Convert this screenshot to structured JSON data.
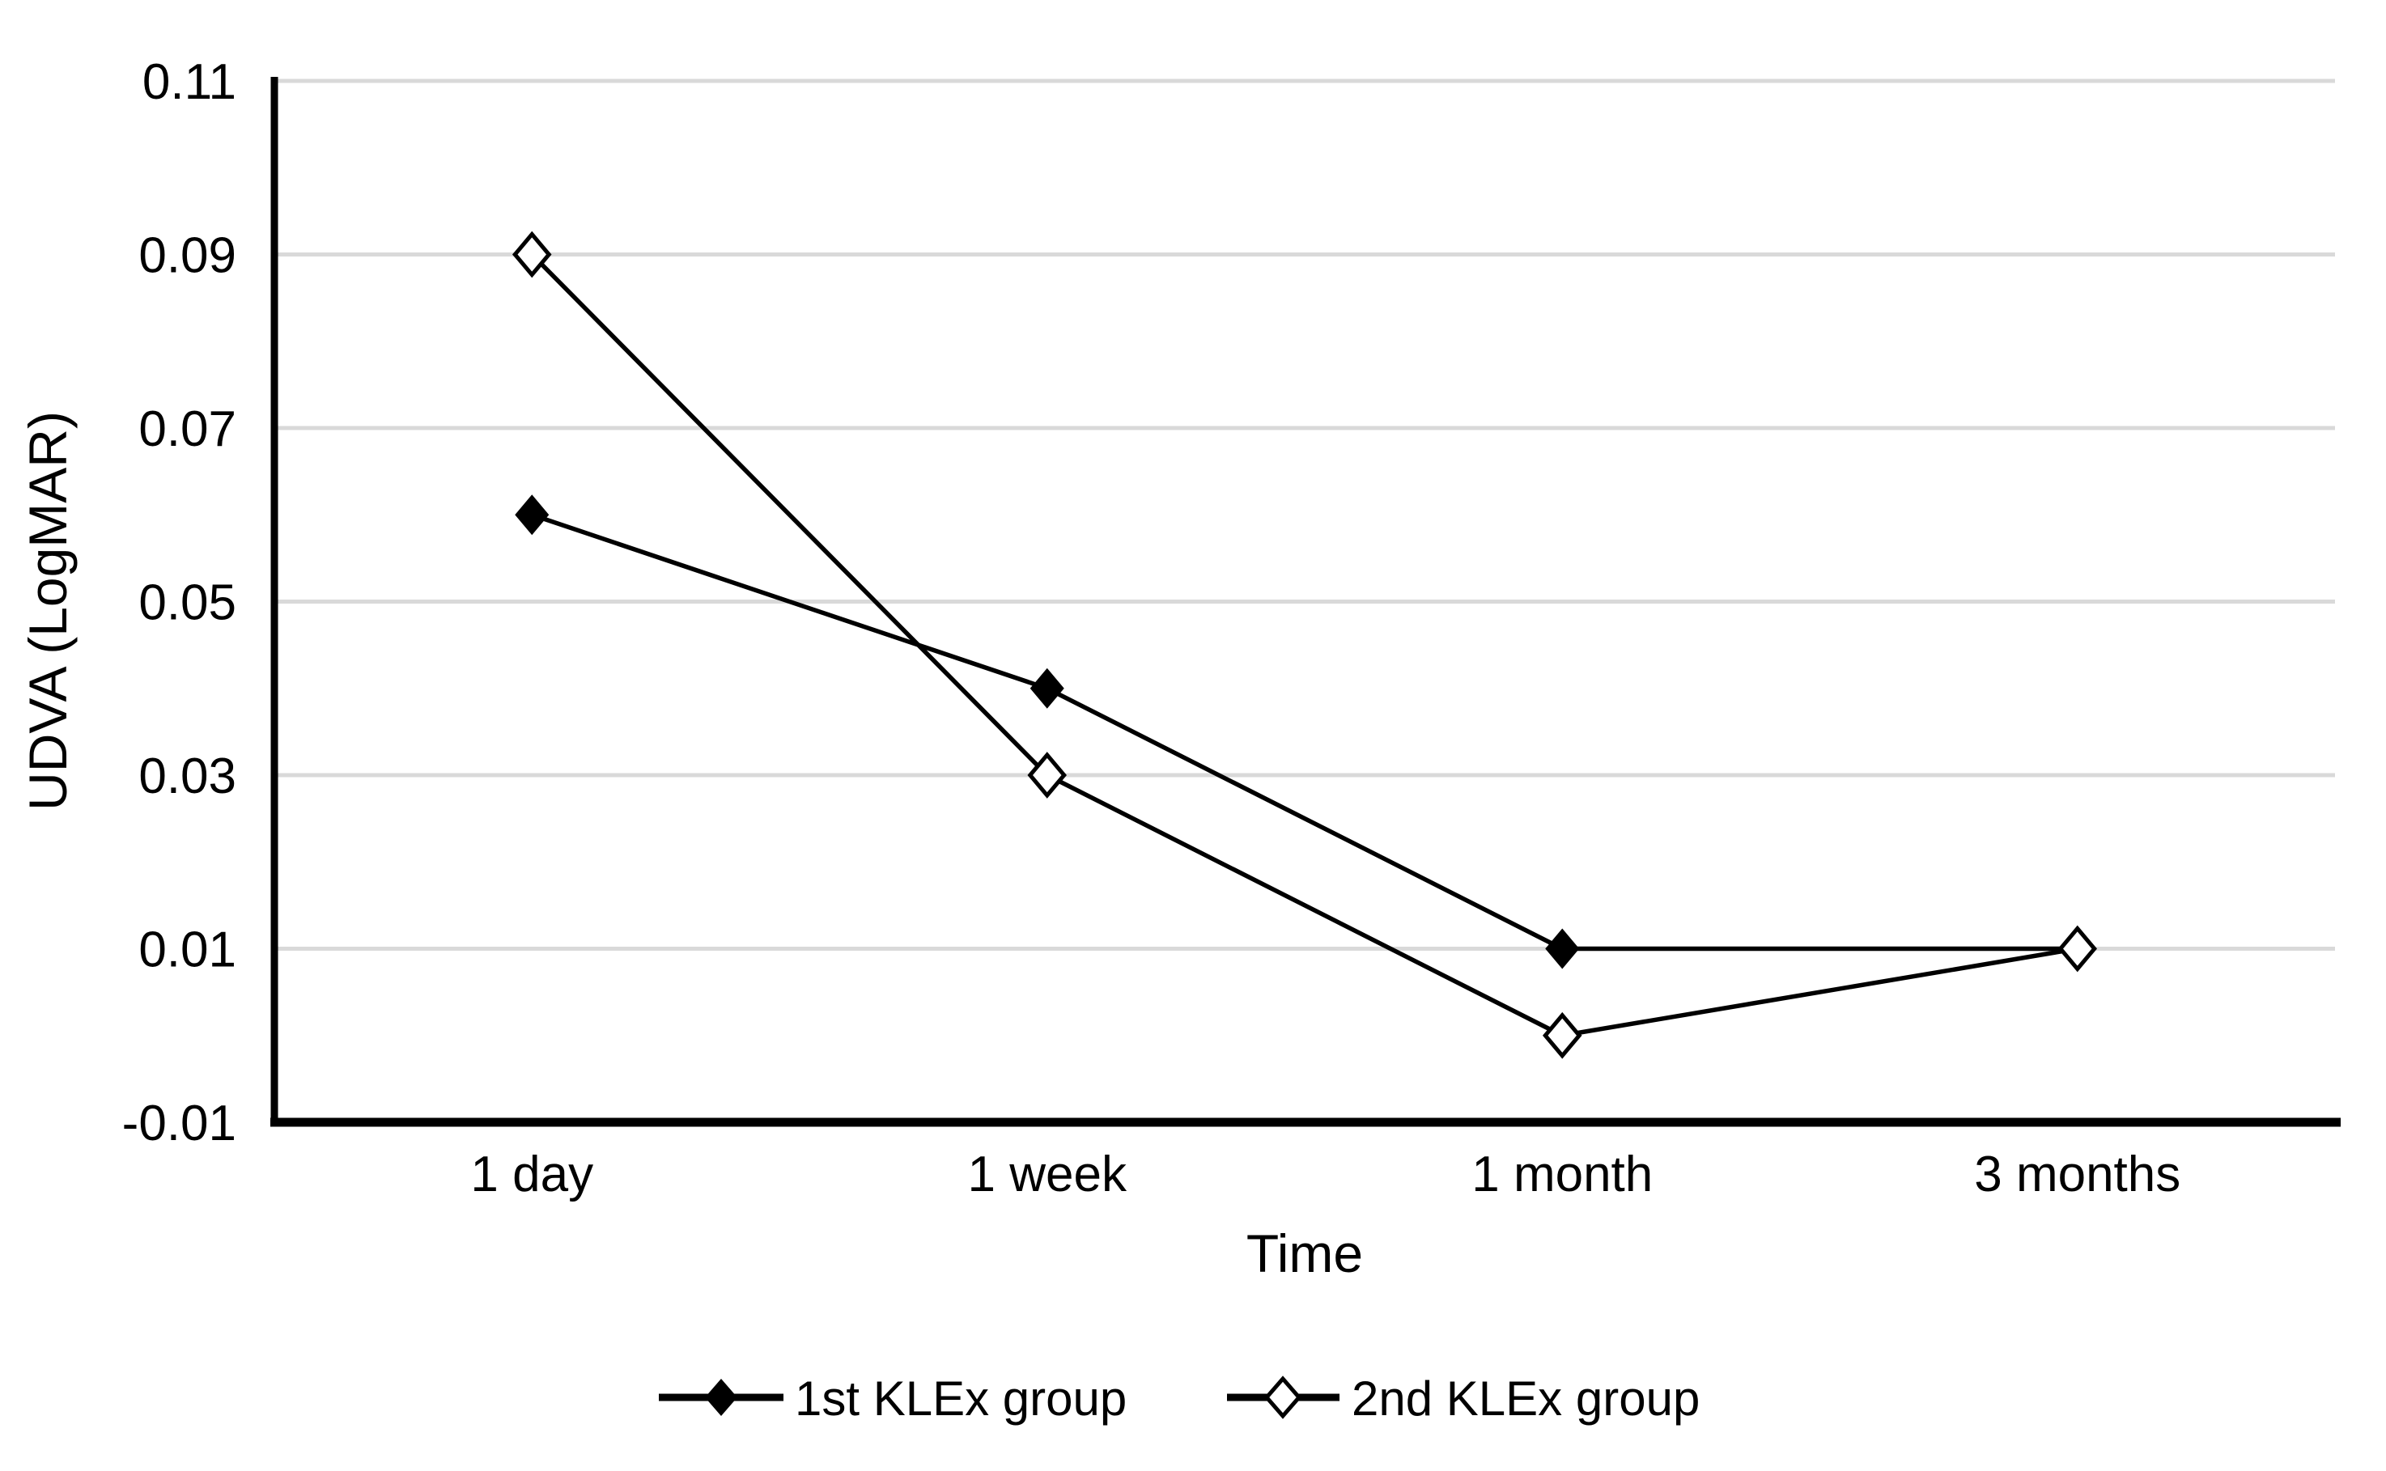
{
  "chart_data": {
    "type": "line",
    "title": "",
    "xlabel": "Time",
    "ylabel": "UDVA (LogMAR)",
    "categories": [
      "1 day",
      "1 week",
      "1 month",
      "3 months"
    ],
    "series": [
      {
        "name": "1st KLEx group",
        "marker": "filled-diamond",
        "values": [
          0.06,
          0.04,
          0.01,
          0.01
        ]
      },
      {
        "name": "2nd KLEx group",
        "marker": "open-diamond",
        "values": [
          0.09,
          0.03,
          0.0,
          0.01
        ]
      }
    ],
    "ylim": [
      -0.01,
      0.11
    ],
    "ytick_step": 0.02,
    "yticks": [
      "0.11",
      "0.09",
      "0.07",
      "0.05",
      "0.03",
      "0.01",
      "-0.01"
    ],
    "grid": "horizontal-only",
    "legend_position": "bottom",
    "colors": {
      "series_line": "#000000",
      "marker_fill": "#000000",
      "open_marker_fill": "#ffffff",
      "gridline": "#d9d9d9",
      "axis": "#000000",
      "text": "#000000",
      "background": "#ffffff"
    }
  }
}
